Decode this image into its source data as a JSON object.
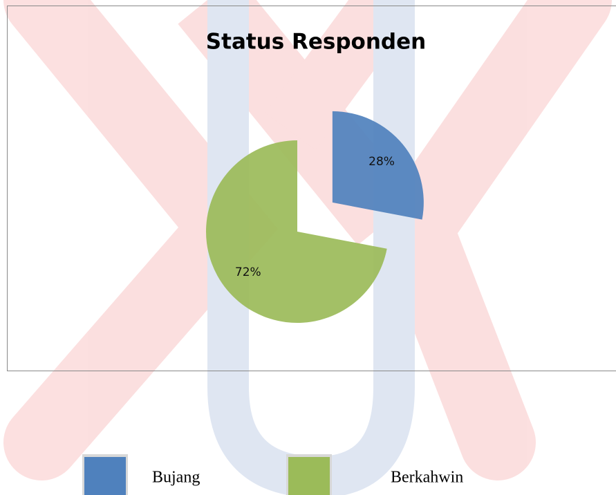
{
  "chart_data": {
    "type": "pie",
    "title": "Status Responden",
    "categories": [
      "Bujang",
      "Berkahwin"
    ],
    "values": [
      28,
      72
    ],
    "value_labels": [
      "28%",
      "72%"
    ],
    "colors": [
      "#4f81bd",
      "#9bbb59"
    ],
    "legend": "bottom"
  }
}
